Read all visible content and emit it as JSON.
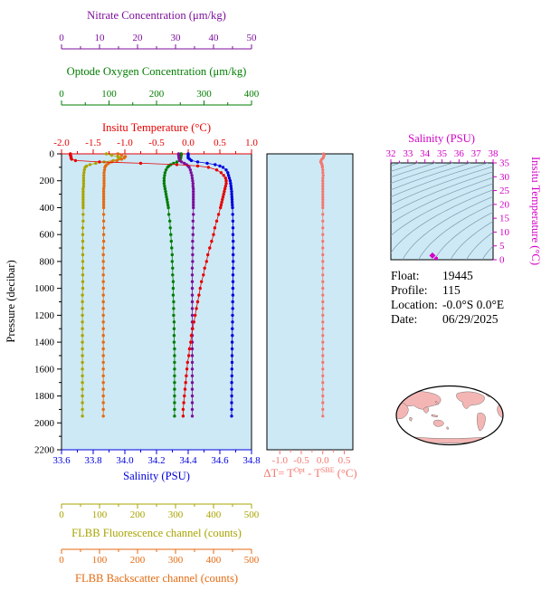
{
  "colors": {
    "nitrate": "#7d0f9b",
    "oxygen": "#007d00",
    "temperature": "#e60000",
    "salinity": "#0000dd",
    "fluorescence": "#a9a400",
    "backscatter": "#e56a10",
    "deltat": "#f4766e",
    "ts": "#d400c8",
    "plot_bg": "#cde9f6",
    "contour": "#7f98a8",
    "land": "#f3b6b4",
    "axis_black": "#000000"
  },
  "axes": {
    "nitrate": {
      "label": "Nitrate Concentration (μm/kg)",
      "color": "nitrate",
      "ticks": [
        "0",
        "10",
        "20",
        "30",
        "40",
        "50"
      ],
      "range": [
        0,
        50
      ]
    },
    "oxygen": {
      "label": "Optode Oxygen Concentration (μm/kg)",
      "color": "oxygen",
      "ticks": [
        "0",
        "100",
        "200",
        "300",
        "400"
      ],
      "range": [
        0,
        400
      ]
    },
    "temperature": {
      "label": "Insitu Temperature (°C)",
      "color": "temperature",
      "ticks": [
        "-2.0",
        "-1.5",
        "-1.0",
        "-0.5",
        "0.0",
        "0.5",
        "1.0"
      ],
      "range": [
        -2,
        1
      ]
    },
    "pressure": {
      "label": "Pressure (decibar)",
      "ticks": [
        "0",
        "200",
        "400",
        "600",
        "800",
        "1000",
        "1200",
        "1400",
        "1600",
        "1800",
        "2000",
        "2200"
      ],
      "range": [
        0,
        2200
      ]
    },
    "salinity": {
      "label": "Salinity (PSU)",
      "color": "salinity",
      "ticks": [
        "33.6",
        "33.8",
        "34.0",
        "34.2",
        "34.4",
        "34.6",
        "34.8"
      ],
      "range": [
        33.6,
        34.8
      ]
    },
    "fluorescence": {
      "label": "FLBB Fluorescence channel (counts)",
      "color": "fluorescence",
      "ticks": [
        "0",
        "100",
        "200",
        "300",
        "400",
        "500"
      ],
      "range": [
        0,
        500
      ]
    },
    "backscatter": {
      "label": "FLBB Backscatter channel (counts)",
      "color": "backscatter",
      "ticks": [
        "0",
        "100",
        "200",
        "300",
        "400",
        "500"
      ],
      "range": [
        0,
        500
      ]
    },
    "deltat": {
      "label_parts": {
        "pre": "ΔT= T",
        "sup1": "Opt",
        "mid": " - T",
        "sup2": "SBE",
        "post": " (°C)"
      },
      "color": "deltat",
      "ticks": [
        "-1.0",
        "-0.5",
        "0.0",
        "0.5"
      ],
      "range": [
        -1.3,
        0.7
      ]
    },
    "ts_x": {
      "label": "Salinity (PSU)",
      "color": "ts",
      "ticks": [
        "32",
        "33",
        "34",
        "35",
        "36",
        "37",
        "38"
      ],
      "range": [
        32,
        38
      ]
    },
    "ts_y": {
      "label": "Insitu Temperature (°C)",
      "color": "ts",
      "ticks": [
        "0",
        "5",
        "10",
        "15",
        "20",
        "25",
        "30",
        "35"
      ],
      "range": [
        0,
        35
      ]
    }
  },
  "info": {
    "float_label": "Float:",
    "float": "19445",
    "profile_label": "Profile:",
    "profile": "115",
    "location_label": "Location:",
    "location": "-0.0°S  0.0°E",
    "date_label": "Date:",
    "date": "06/29/2025"
  },
  "chart_data": {
    "type": "line",
    "title": "",
    "panels": [
      {
        "id": "main-profiles",
        "type": "line",
        "ylabel": "Pressure (decibar)",
        "ylim": [
          0,
          2200
        ],
        "y_inverted": true,
        "grid": false,
        "pressure": [
          0,
          10,
          20,
          30,
          40,
          50,
          60,
          70,
          80,
          90,
          100,
          120,
          140,
          160,
          180,
          200,
          220,
          240,
          260,
          280,
          300,
          320,
          340,
          360,
          380,
          400,
          450,
          500,
          550,
          600,
          650,
          700,
          750,
          800,
          850,
          900,
          950,
          1000,
          1050,
          1100,
          1150,
          1200,
          1250,
          1300,
          1350,
          1400,
          1450,
          1500,
          1550,
          1600,
          1650,
          1700,
          1750,
          1800,
          1850,
          1900,
          1950
        ],
        "series": [
          {
            "key": "fluorescence",
            "name": "FLBB Fluorescence channel (counts)",
            "color": "fluorescence",
            "range": [
              0,
              500
            ],
            "values": [
              118,
              132,
              148,
              155,
              150,
              136,
              112,
              90,
              75,
              66,
              62,
              60,
              59,
              58,
              58,
              58,
              58,
              58,
              57,
              57,
              57,
              57,
              57,
              57,
              57,
              57,
              57,
              57,
              56,
              56,
              56,
              56,
              56,
              56,
              56,
              56,
              56,
              56,
              55,
              55,
              55,
              55,
              55,
              55,
              55,
              55,
              55,
              55,
              55,
              55,
              55,
              55,
              55,
              55,
              55,
              55,
              55
            ]
          },
          {
            "key": "backscatter",
            "name": "FLBB Backscatter channel (counts)",
            "color": "backscatter",
            "range": [
              0,
              500
            ],
            "values": [
              148,
              158,
              168,
              165,
              158,
              146,
              132,
              124,
              119,
              116,
              114,
              113,
              112,
              112,
              112,
              112,
              112,
              112,
              111,
              111,
              111,
              111,
              111,
              111,
              111,
              111,
              111,
              111,
              111,
              111,
              111,
              110,
              110,
              110,
              110,
              110,
              110,
              110,
              110,
              110,
              110,
              110,
              110,
              110,
              110,
              110,
              110,
              110,
              110,
              110,
              110,
              110,
              110,
              110,
              110,
              110,
              110
            ]
          },
          {
            "key": "oxygen",
            "name": "Optode Oxygen Concentration (μm/kg)",
            "color": "oxygen",
            "range": [
              0,
              400
            ],
            "values": [
              252,
              252,
              251,
              251,
              250,
              249,
              243,
              236,
              230,
              226,
              223,
              220,
              218,
              217,
              216,
              216,
              216,
              217,
              218,
              219,
              220,
              221,
              222,
              223,
              224,
              225,
              226,
              228,
              229,
              230,
              231,
              232,
              233,
              233,
              234,
              234,
              235,
              235,
              235,
              236,
              236,
              236,
              237,
              237,
              237,
              237,
              238,
              238,
              238,
              238,
              238,
              238,
              238,
              238,
              238,
              238,
              238
            ]
          },
          {
            "key": "nitrate",
            "name": "Nitrate Concentration (μm/kg)",
            "color": "nitrate",
            "range": [
              0,
              50
            ],
            "values": [
              30.8,
              30.8,
              30.9,
              30.9,
              31.0,
              31.1,
              31.6,
              32.3,
              32.9,
              33.3,
              33.6,
              33.9,
              34.1,
              34.3,
              34.4,
              34.5,
              34.6,
              34.6,
              34.7,
              34.7,
              34.7,
              34.7,
              34.7,
              34.7,
              34.7,
              34.7,
              34.7,
              34.6,
              34.6,
              34.6,
              34.5,
              34.5,
              34.5,
              34.5,
              34.4,
              34.4,
              34.4,
              34.4,
              34.4,
              34.4,
              34.4,
              34.4,
              34.4,
              34.4,
              34.4,
              34.4,
              34.4,
              34.4,
              34.4,
              34.4,
              34.4,
              34.4,
              34.4,
              34.4,
              34.4,
              34.4,
              34.4
            ]
          },
          {
            "key": "salinity",
            "name": "Salinity (PSU)",
            "color": "salinity",
            "range": [
              33.6,
              34.8
            ],
            "values": [
              34.4,
              34.4,
              34.4,
              34.4,
              34.41,
              34.42,
              34.46,
              34.52,
              34.57,
              34.6,
              34.62,
              34.64,
              34.65,
              34.655,
              34.66,
              34.665,
              34.668,
              34.67,
              34.672,
              34.674,
              34.675,
              34.676,
              34.677,
              34.678,
              34.679,
              34.68,
              34.681,
              34.682,
              34.683,
              34.683,
              34.684,
              34.684,
              34.684,
              34.684,
              34.684,
              34.683,
              34.683,
              34.682,
              34.682,
              34.681,
              34.681,
              34.68,
              34.68,
              34.679,
              34.679,
              34.678,
              34.678,
              34.677,
              34.677,
              34.676,
              34.676,
              34.675,
              34.675,
              34.675,
              34.674,
              34.674,
              34.674
            ]
          },
          {
            "key": "temperature",
            "name": "Insitu Temperature (°C)",
            "color": "temperature",
            "range": [
              -2,
              1
            ],
            "values": [
              -1.86,
              -1.86,
              -1.85,
              -1.85,
              -1.84,
              -1.78,
              -1.4,
              -0.75,
              -0.18,
              0.15,
              0.32,
              0.45,
              0.52,
              0.56,
              0.59,
              0.6,
              0.6,
              0.59,
              0.58,
              0.57,
              0.56,
              0.55,
              0.54,
              0.53,
              0.52,
              0.51,
              0.48,
              0.45,
              0.42,
              0.4,
              0.37,
              0.34,
              0.31,
              0.29,
              0.26,
              0.24,
              0.21,
              0.19,
              0.17,
              0.15,
              0.13,
              0.11,
              0.09,
              0.07,
              0.05,
              0.04,
              0.02,
              0.01,
              -0.01,
              -0.02,
              -0.03,
              -0.04,
              -0.05,
              -0.06,
              -0.07,
              -0.08,
              -0.08
            ]
          }
        ]
      },
      {
        "id": "delta-t",
        "type": "line",
        "xlabel": "ΔT= TOpt - TSBE (°C)",
        "xlim": [
          -1.3,
          0.7
        ],
        "color": "deltat",
        "values": [
          0.02,
          0.03,
          0.02,
          0.01,
          -0.02,
          -0.04,
          -0.05,
          -0.03,
          -0.02,
          -0.01,
          -0.01,
          0,
          0,
          0.01,
          0,
          0,
          0,
          0,
          0,
          0,
          0,
          0,
          0,
          0,
          0,
          0,
          0,
          0,
          0,
          0,
          0,
          0,
          0,
          0,
          0,
          0,
          0,
          0,
          0,
          0,
          0,
          0,
          0,
          0,
          0,
          0,
          0,
          0,
          0,
          0,
          0,
          0,
          0,
          0,
          0,
          0,
          0
        ]
      },
      {
        "id": "ts-diagram",
        "type": "scatter",
        "xlabel": "Salinity (PSU)",
        "ylabel": "Insitu Temperature (°C)",
        "xlim": [
          32,
          38
        ],
        "ylim": [
          0,
          35
        ],
        "points_source": [
          "salinity",
          "temperature"
        ],
        "marker": {
          "s": 34.44,
          "t": 1.5
        },
        "isopycnals": {
          "start": 18,
          "end": 30,
          "step": 0.75
        }
      }
    ]
  }
}
